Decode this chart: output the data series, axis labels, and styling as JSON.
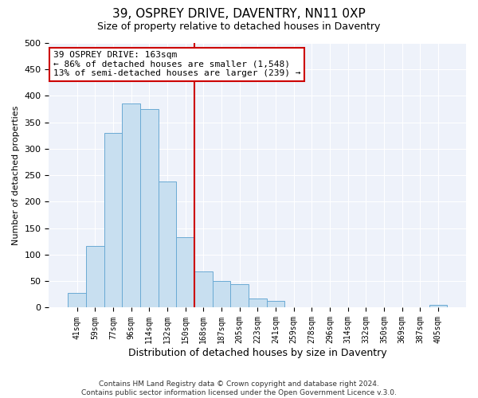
{
  "title": "39, OSPREY DRIVE, DAVENTRY, NN11 0XP",
  "subtitle": "Size of property relative to detached houses in Daventry",
  "xlabel": "Distribution of detached houses by size in Daventry",
  "ylabel": "Number of detached properties",
  "bar_labels": [
    "41sqm",
    "59sqm",
    "77sqm",
    "96sqm",
    "114sqm",
    "132sqm",
    "150sqm",
    "168sqm",
    "187sqm",
    "205sqm",
    "223sqm",
    "241sqm",
    "259sqm",
    "278sqm",
    "296sqm",
    "314sqm",
    "332sqm",
    "350sqm",
    "369sqm",
    "387sqm",
    "405sqm"
  ],
  "bar_values": [
    28,
    116,
    330,
    385,
    375,
    238,
    133,
    68,
    50,
    45,
    18,
    13,
    0,
    0,
    0,
    0,
    0,
    0,
    0,
    0,
    5
  ],
  "bar_color": "#c8dff0",
  "bar_edge_color": "#6aaad4",
  "vline_color": "#cc0000",
  "ylim": [
    0,
    500
  ],
  "yticks": [
    0,
    50,
    100,
    150,
    200,
    250,
    300,
    350,
    400,
    450,
    500
  ],
  "annotation_line1": "39 OSPREY DRIVE: 163sqm",
  "annotation_line2": "← 86% of detached houses are smaller (1,548)",
  "annotation_line3": "13% of semi-detached houses are larger (239) →",
  "annotation_box_color": "#ffffff",
  "annotation_box_edge": "#cc0000",
  "footer_line1": "Contains HM Land Registry data © Crown copyright and database right 2024.",
  "footer_line2": "Contains public sector information licensed under the Open Government Licence v.3.0.",
  "title_fontsize": 11,
  "subtitle_fontsize": 9,
  "annotation_fontsize": 8,
  "footer_fontsize": 6.5,
  "bg_color": "#eef2fa",
  "grid_color": "#ffffff"
}
